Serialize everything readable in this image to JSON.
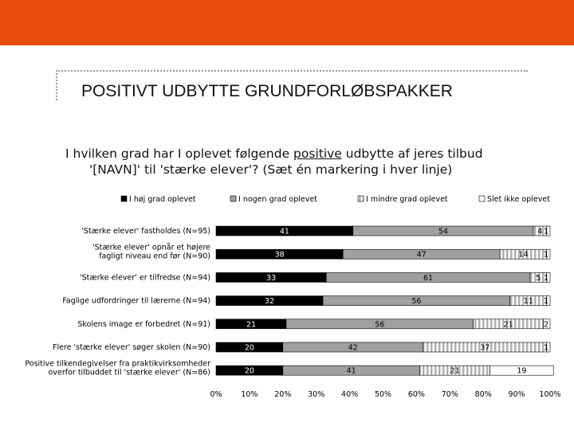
{
  "slide": {
    "title": "POSITIVT UDBYTTE GRUNDFORLØBSPAKKER",
    "question_part1": "I hvilken grad har I oplevet følgende ",
    "question_emph": "positive",
    "question_part2": " udbytte af jeres tilbud",
    "question_line2": "'[NAVN]' til 'stærke elever'? (Sæt én markering i hver linje)"
  },
  "colors": {
    "band": "#e84c0b",
    "series": [
      "#000000",
      "#a0a0a0",
      "#dcdcdc",
      "#ffffff"
    ]
  },
  "chart_data": {
    "type": "bar",
    "orientation": "horizontal",
    "stacked": true,
    "percent": true,
    "legend_position": "top",
    "xlim": [
      0,
      100
    ],
    "xticks": [
      "0%",
      "10%",
      "20%",
      "30%",
      "40%",
      "50%",
      "60%",
      "70%",
      "80%",
      "90%",
      "100%"
    ],
    "categories": [
      [
        "'Stærke elever' fastholdes (N=95)"
      ],
      [
        "'Stærke elever' opnår et højere",
        "fagligt niveau end før (N=90)"
      ],
      [
        "'Stærke elever' er tilfredse (N=94)"
      ],
      [
        "Faglige udfordringer til lærerne (N=94)"
      ],
      [
        "Skolens image er forbedret (N=91)"
      ],
      [
        "Flere 'stærke elever' søger skolen (N=90)"
      ],
      [
        "Positive tilkendegivelser fra praktikvirksomheder",
        "overfor tilbuddet til 'stærke elever' (N=86)"
      ]
    ],
    "series": [
      {
        "name": "I høj grad oplevet",
        "values": [
          41,
          38,
          33,
          32,
          21,
          20,
          20
        ],
        "labels": [
          "41",
          "38",
          "33",
          "32",
          "21",
          "20",
          "20"
        ]
      },
      {
        "name": "I nogen grad oplevet",
        "values": [
          54,
          47,
          61,
          56,
          56,
          42,
          41
        ],
        "labels": [
          "54",
          "47",
          "61",
          "56",
          "56",
          "42",
          "41"
        ]
      },
      {
        "name": "I mindre grad oplevet",
        "values": [
          4,
          14,
          5,
          11,
          21,
          37,
          21
        ],
        "labels": [
          "4",
          "14",
          "5",
          "11",
          "21",
          "37",
          "21"
        ]
      },
      {
        "name": "Slet ikke oplevet",
        "values": [
          1,
          1,
          1,
          1,
          2,
          1,
          19
        ],
        "labels": [
          "1",
          "1",
          "1",
          "1",
          "2",
          "1",
          "19"
        ]
      }
    ]
  }
}
